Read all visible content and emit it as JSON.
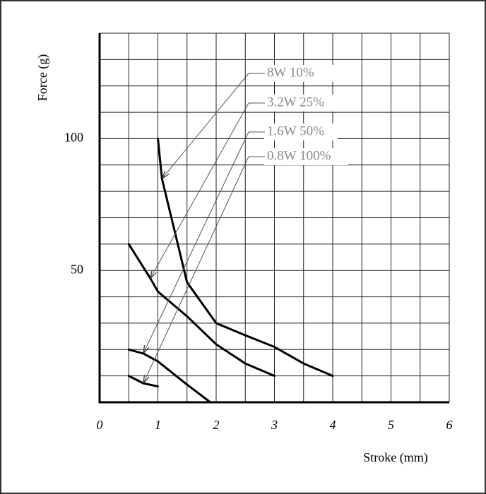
{
  "chart_data": {
    "type": "line",
    "x_label": "Stroke (mm)",
    "y_label": "Force (g)",
    "xlim": [
      0,
      6
    ],
    "ylim": [
      0,
      140
    ],
    "xticks": [
      0,
      1,
      2,
      3,
      4,
      5,
      6
    ],
    "yticks": [
      50,
      100
    ],
    "xgrid": [
      0.5,
      1,
      1.5,
      2,
      2.5,
      3,
      3.5,
      4,
      4.5,
      5,
      5.5,
      6
    ],
    "ygrid": [
      10,
      20,
      30,
      40,
      50,
      60,
      70,
      80,
      90,
      100,
      110,
      120,
      130,
      140
    ],
    "grid": true,
    "series": [
      {
        "name": "8W 10%",
        "color": "#000000",
        "x": [
          1,
          1.07,
          1.5,
          2,
          2.5,
          3,
          3.5,
          4
        ],
        "values": [
          100,
          84.8,
          45.5,
          30,
          25.4,
          21,
          14.7,
          10
        ]
      },
      {
        "name": "3.2W 25%",
        "color": "#000000",
        "x": [
          0.5,
          0.87,
          1,
          1.5,
          2,
          2.5,
          3
        ],
        "values": [
          60,
          47,
          42,
          32.6,
          22,
          14.7,
          10
        ]
      },
      {
        "name": "1.6W 50%",
        "color": "#000000",
        "x": [
          0.5,
          0.75,
          1,
          1.5,
          1.9
        ],
        "values": [
          20,
          18.5,
          15.5,
          6.7,
          0
        ]
      },
      {
        "name": "0.8W 100%",
        "color": "#000000",
        "x": [
          0.5,
          0.75,
          1
        ],
        "values": [
          10,
          7.2,
          6
        ]
      }
    ]
  }
}
